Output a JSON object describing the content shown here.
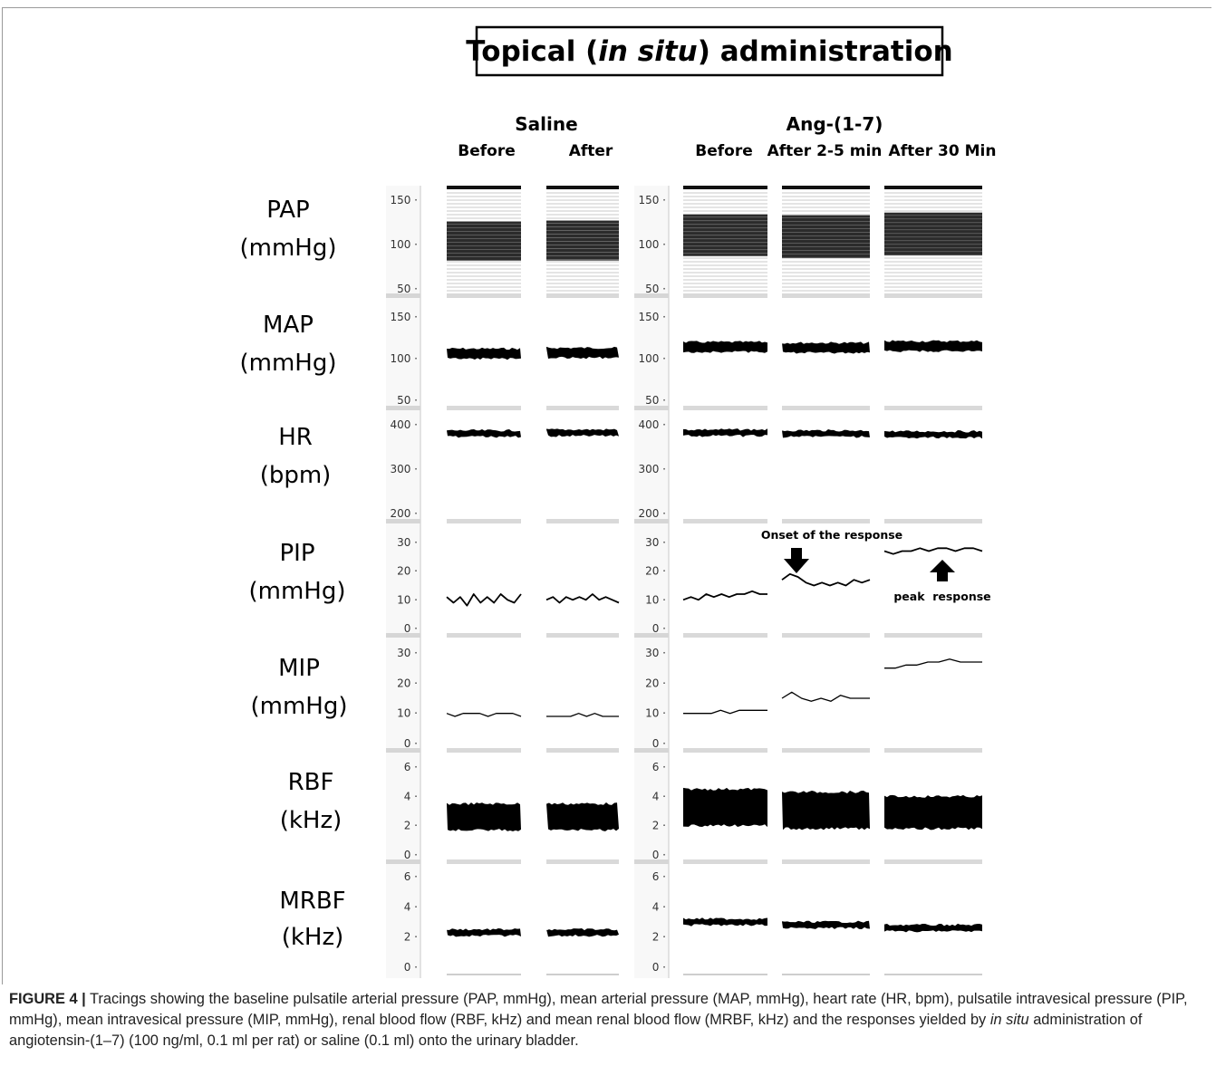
{
  "figure": {
    "title_parts": [
      "Topical (",
      "in situ",
      ") administration"
    ],
    "groups": [
      {
        "name": "Saline",
        "columns": [
          "Before",
          "After"
        ]
      },
      {
        "name": "Ang-(1-7)",
        "columns": [
          "Before",
          "After 2-5 min",
          "After 30 Min"
        ]
      }
    ],
    "annotations": {
      "onset": "Onset of the response",
      "peak": "peak  response"
    },
    "rows": [
      {
        "name": "PAP",
        "unit": "(mmHg)",
        "ticks": [
          "150",
          "100",
          "50"
        ],
        "ymin": 50,
        "ymax": 150,
        "kind": "band",
        "values": [
          [
            82,
            126
          ],
          [
            82,
            127
          ],
          [
            87,
            134
          ],
          [
            85,
            133
          ],
          [
            88,
            136
          ]
        ]
      },
      {
        "name": "MAP",
        "unit": "(mmHg)",
        "ticks": [
          "150",
          "100",
          "50"
        ],
        "ymin": 50,
        "ymax": 150,
        "kind": "thick",
        "values": [
          106,
          107,
          114,
          113,
          115
        ]
      },
      {
        "name": "HR",
        "unit": "(bpm)",
        "ticks": [
          "400",
          "300",
          "200"
        ],
        "ymin": 200,
        "ymax": 400,
        "kind": "thick",
        "values": [
          380,
          382,
          382,
          380,
          378
        ]
      },
      {
        "name": "PIP",
        "unit": "(mmHg)",
        "ticks": [
          "30",
          "20",
          "10",
          "0"
        ],
        "ymin": 0,
        "ymax": 30,
        "kind": "trace",
        "values": [
          [
            11,
            9,
            11,
            8,
            12,
            9,
            11,
            9,
            12,
            10,
            9,
            12
          ],
          [
            10,
            11,
            9,
            11,
            10,
            11,
            10,
            12,
            10,
            11,
            10,
            9
          ],
          [
            10,
            11,
            10,
            12,
            11,
            12,
            11,
            12,
            12,
            13,
            12,
            12
          ],
          [
            17,
            19,
            18,
            16,
            15,
            16,
            15,
            16,
            15,
            17,
            16,
            17
          ],
          [
            27,
            26,
            27,
            27,
            28,
            27,
            28,
            28,
            27,
            28,
            28,
            27
          ]
        ]
      },
      {
        "name": "MIP",
        "unit": "(mmHg)",
        "ticks": [
          "30",
          "20",
          "10",
          "0"
        ],
        "ymin": 0,
        "ymax": 30,
        "kind": "line",
        "values": [
          [
            10,
            9,
            10,
            10,
            10,
            9,
            10,
            10,
            10,
            9
          ],
          [
            9,
            9,
            9,
            9,
            10,
            9,
            10,
            9,
            9,
            9
          ],
          [
            10,
            10,
            10,
            10,
            11,
            10,
            11,
            11,
            11,
            11
          ],
          [
            15,
            17,
            15,
            14,
            15,
            14,
            16,
            15,
            15,
            15
          ],
          [
            25,
            25,
            26,
            26,
            27,
            27,
            28,
            27,
            27,
            27
          ]
        ]
      },
      {
        "name": "RBF",
        "unit": "(kHz)",
        "ticks": [
          "6",
          "4",
          "2",
          "0"
        ],
        "ymin": 0,
        "ymax": 6,
        "kind": "band",
        "values": [
          [
            1.7,
            3.5
          ],
          [
            1.7,
            3.5
          ],
          [
            2.0,
            4.5
          ],
          [
            1.8,
            4.3
          ],
          [
            1.8,
            4.0
          ]
        ]
      },
      {
        "name": "MRBF",
        "unit": "(kHz)",
        "ticks": [
          "6",
          "4",
          "2",
          "0"
        ],
        "ymin": 0,
        "ymax": 6,
        "kind": "thick",
        "values": [
          2.3,
          2.3,
          3.0,
          2.8,
          2.6
        ]
      }
    ]
  },
  "caption": {
    "label": "FIGURE 4 |",
    "text_1": " Tracings showing the baseline pulsatile arterial pressure (PAP, mmHg), mean arterial pressure (MAP, mmHg), heart rate (HR, bpm), pulsatile intravesical pressure (PIP, mmHg), mean intravesical pressure (MIP, mmHg), renal blood flow (RBF, kHz) and mean renal blood flow (MRBF, kHz) and the responses yielded by ",
    "text_italic": "in situ",
    "text_2": " administration of angiotensin-(1–7) (100 ng/ml, 0.1 ml per rat) or saline (0.1 ml) onto the urinary bladder."
  }
}
